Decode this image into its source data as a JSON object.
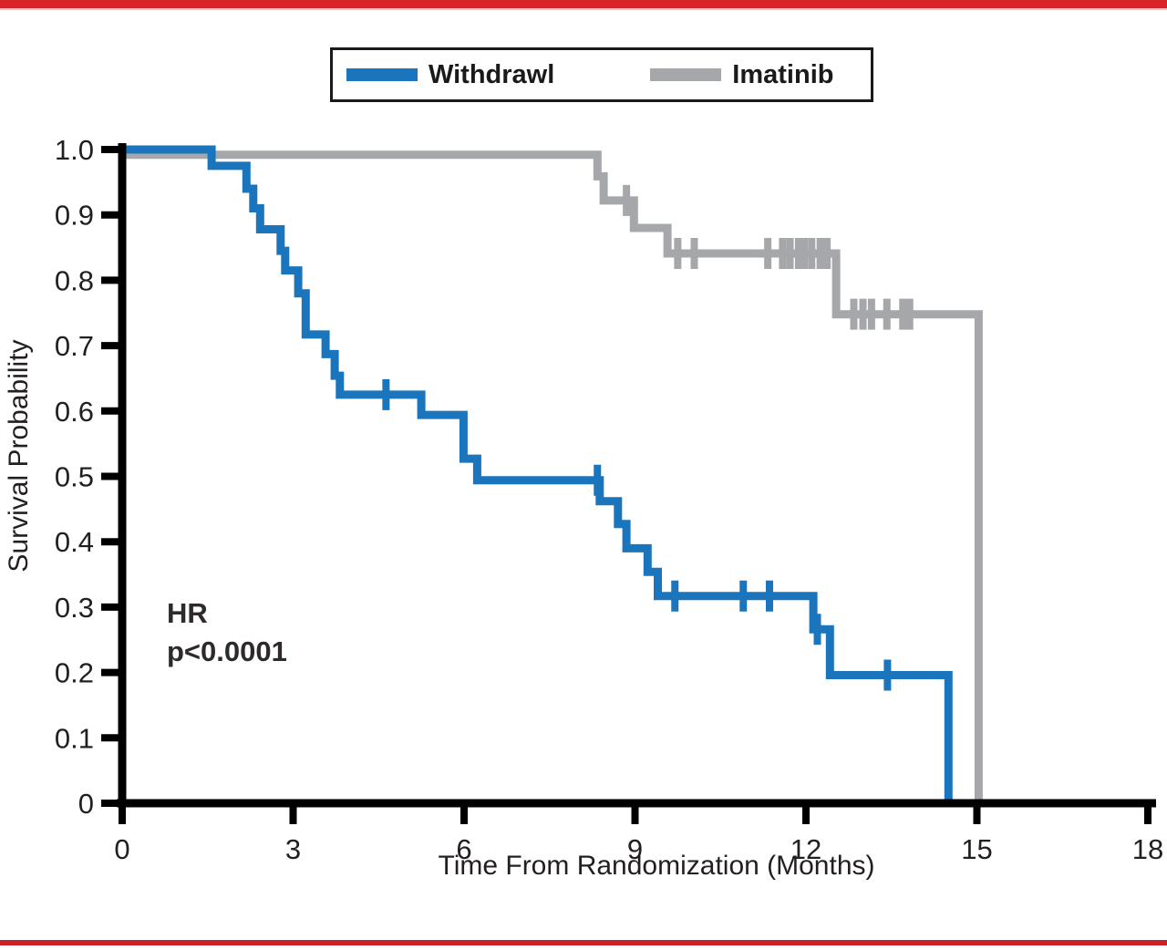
{
  "page": {
    "top_bar_color": "#D8232A",
    "top_bar_underline_color": "#F0C8C9",
    "bottom_bar_color": "#C92127",
    "background_color": "#FFFFFF"
  },
  "chart_data": {
    "type": "line",
    "subtype": "kaplan_meier_step",
    "title": "",
    "xlabel": "Time From Randomization (Months)",
    "ylabel": "Survival Probability",
    "xlim": [
      0,
      18
    ],
    "ylim": [
      0,
      1.0
    ],
    "xticks": [
      0,
      3,
      6,
      9,
      12,
      15,
      18
    ],
    "xtick_labels": [
      "0",
      "3",
      "6",
      "9",
      "12",
      "15",
      "18"
    ],
    "yticks": [
      1.0,
      0.9,
      0.8,
      0.7,
      0.6,
      0.5,
      0.4,
      0.3,
      0.2,
      0.1,
      0
    ],
    "ytick_labels": [
      "1.0",
      "0.9",
      "0.8",
      "0.7",
      "0.6",
      "0.5",
      "0.4",
      "0.3",
      "0.2",
      "0.1",
      "0"
    ],
    "grid": false,
    "legend_position": "top-center",
    "annotations": [
      "HR",
      "p<0.0001"
    ],
    "series": [
      {
        "name": "Withdrawl",
        "color": "#1B75BC",
        "steps": [
          [
            0,
            1.0
          ],
          [
            1.57,
            0.975
          ],
          [
            2.18,
            0.94
          ],
          [
            2.3,
            0.91
          ],
          [
            2.42,
            0.878
          ],
          [
            2.78,
            0.845
          ],
          [
            2.86,
            0.815
          ],
          [
            3.09,
            0.78
          ],
          [
            3.22,
            0.717
          ],
          [
            3.57,
            0.687
          ],
          [
            3.73,
            0.654
          ],
          [
            3.82,
            0.625
          ],
          [
            5.25,
            0.594
          ],
          [
            5.99,
            0.527
          ],
          [
            6.23,
            0.494
          ],
          [
            8.38,
            0.462
          ],
          [
            8.7,
            0.427
          ],
          [
            8.85,
            0.39
          ],
          [
            9.22,
            0.354
          ],
          [
            9.4,
            0.317
          ],
          [
            12.13,
            0.266
          ],
          [
            12.42,
            0.196
          ],
          [
            14.5,
            0.0
          ]
        ],
        "censor_marks": [
          [
            4.63,
            0.625
          ],
          [
            8.34,
            0.494
          ],
          [
            9.7,
            0.317
          ],
          [
            10.9,
            0.317
          ],
          [
            11.36,
            0.317
          ],
          [
            12.2,
            0.266
          ],
          [
            13.43,
            0.196
          ]
        ]
      },
      {
        "name": "Imatinib",
        "color": "#A5A7AA",
        "steps": [
          [
            0,
            0.992
          ],
          [
            8.34,
            0.959
          ],
          [
            8.45,
            0.922
          ],
          [
            8.98,
            0.88
          ],
          [
            9.57,
            0.841
          ],
          [
            12.53,
            0.748
          ],
          [
            15.03,
            0.0
          ]
        ],
        "censor_marks": [
          [
            8.85,
            0.922
          ],
          [
            9.75,
            0.841
          ],
          [
            10.04,
            0.841
          ],
          [
            11.33,
            0.841
          ],
          [
            11.59,
            0.841
          ],
          [
            11.72,
            0.841
          ],
          [
            11.87,
            0.841
          ],
          [
            11.97,
            0.841
          ],
          [
            12.1,
            0.841
          ],
          [
            12.25,
            0.841
          ],
          [
            12.37,
            0.841
          ],
          [
            12.84,
            0.748
          ],
          [
            13.0,
            0.748
          ],
          [
            13.15,
            0.748
          ],
          [
            13.42,
            0.748
          ],
          [
            13.7,
            0.748
          ],
          [
            13.82,
            0.748
          ]
        ]
      }
    ]
  }
}
